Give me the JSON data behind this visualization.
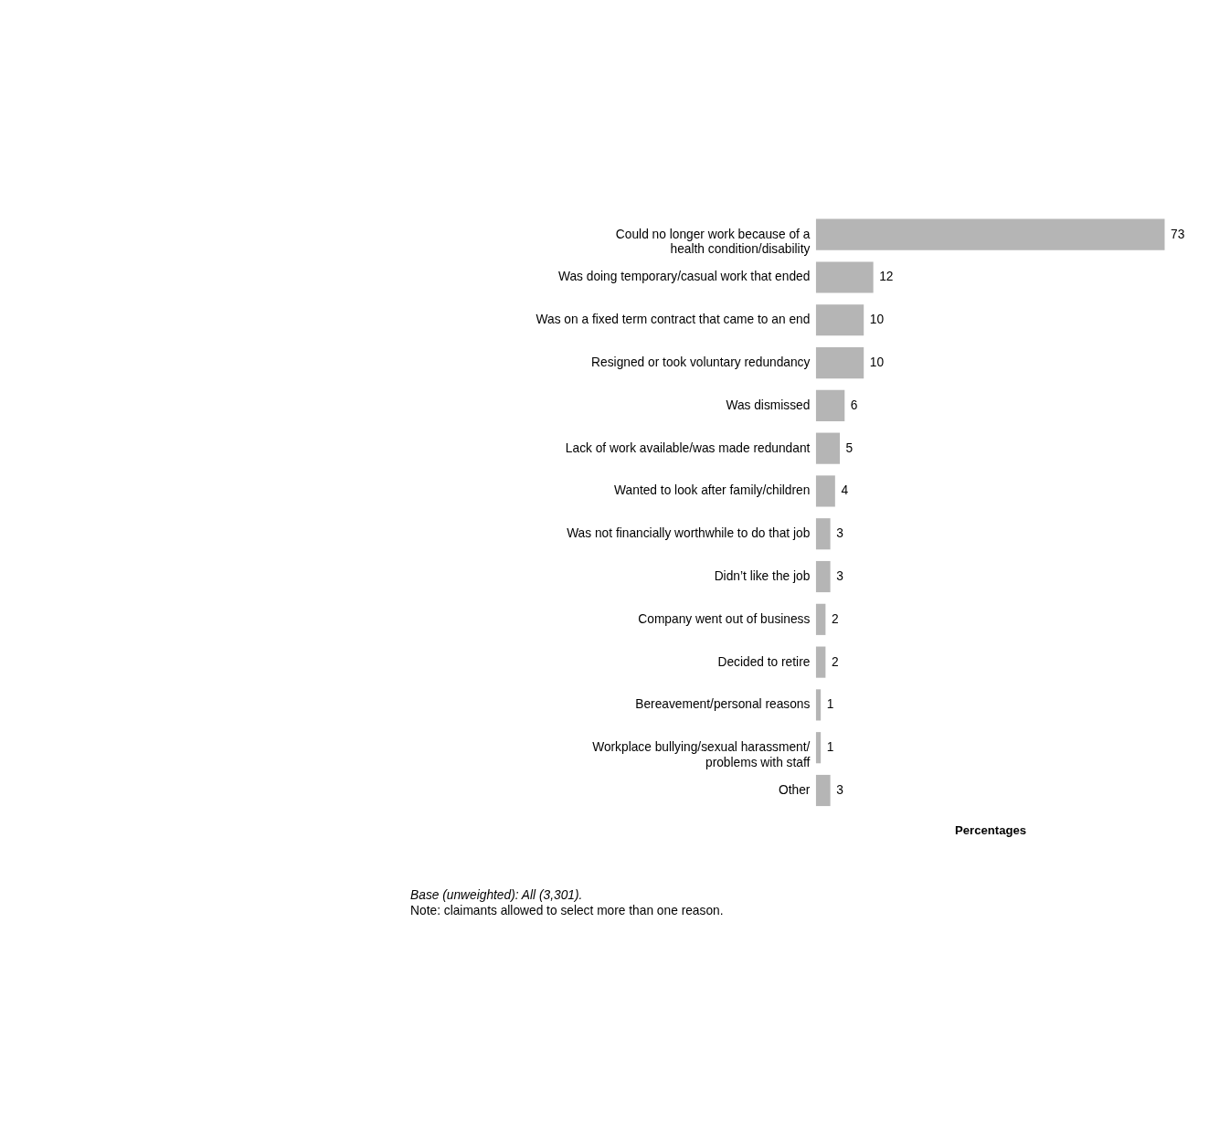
{
  "chart_data": {
    "type": "bar",
    "orientation": "horizontal",
    "xlabel": "Percentages",
    "categories": [
      "Could no longer work because of a health condition/disability",
      "Was doing temporary/casual work that ended",
      "Was on a fixed term contract that came to an end",
      "Resigned or took voluntary redundancy",
      "Was dismissed",
      "Lack of work available/was made redundant",
      "Wanted to look after family/children",
      "Was not financially worthwhile to do that job",
      "Didn’t like the job",
      "Company went out of business",
      "Decided to retire",
      "Bereavement/personal reasons",
      "Workplace bullying/sexual harassment/ problems with staff",
      "Other"
    ],
    "values": [
      73,
      12,
      10,
      10,
      6,
      5,
      4,
      3,
      3,
      2,
      2,
      1,
      1,
      3
    ],
    "color": "#b5b5b5",
    "data_labels": true,
    "tick_labels": false,
    "grid": false,
    "annotations": [
      "Base (unweighted): All (3,301).",
      "Note: claimants allowed to select more than one reason."
    ]
  }
}
